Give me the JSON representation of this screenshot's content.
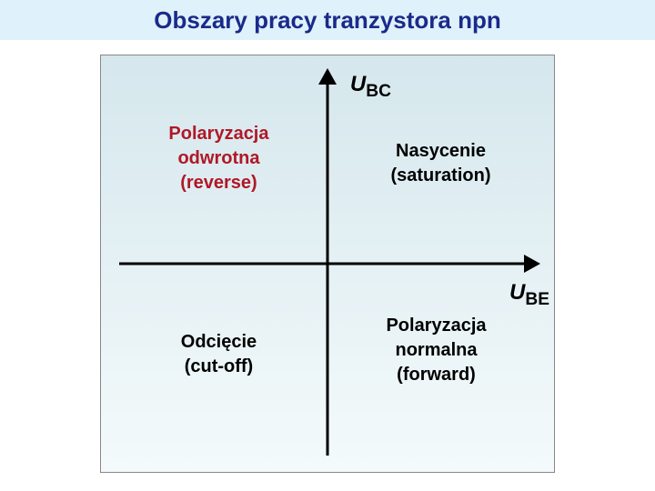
{
  "title": {
    "text": "Obszary pracy tranzystora npn",
    "color": "#1a2a8a",
    "background": "#dff1fa",
    "fontsize": 26
  },
  "diagram": {
    "background_top": "#d5e7ed",
    "background_bottom": "#f4fafb",
    "axis_color": "#000000",
    "axis_width": 3,
    "y_axis_label_html": "U<sub>BC</sub>",
    "x_axis_label_html": "U<sub>BE</sub>",
    "axis_label_color": "#000000",
    "axis_label_fontsize": 24,
    "quadrant_fontsize": 20,
    "quadrants": {
      "top_left": {
        "lines": [
          "Polaryzacja",
          "odwrotna",
          "(reverse)"
        ],
        "color": "#b01826"
      },
      "top_right": {
        "lines": [
          "Nasycenie",
          "(saturation)"
        ],
        "color": "#000000"
      },
      "bottom_left": {
        "lines": [
          "Odcięcie",
          "(cut-off)"
        ],
        "color": "#000000"
      },
      "bottom_right": {
        "lines": [
          "Polaryzacja",
          "normalna",
          "(forward)"
        ],
        "color": "#000000"
      }
    }
  }
}
